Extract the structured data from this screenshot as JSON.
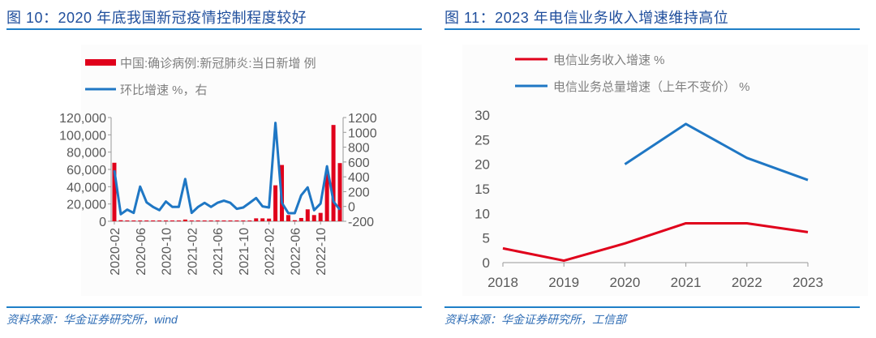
{
  "left": {
    "title": "图 10：2020 年底我国新冠疫情控制程度较好",
    "source": "资料来源：华金证券研究所，wind"
  },
  "right": {
    "title": "图 11：2023 年电信业务收入增速维持高位",
    "source": "资料来源：华金证券研究所，工信部"
  },
  "chart_data": [
    {
      "type": "bar+line",
      "categories": [
        "2020-02",
        "2020-03",
        "2020-04",
        "2020-05",
        "2020-06",
        "2020-07",
        "2020-08",
        "2020-09",
        "2020-10",
        "2020-11",
        "2020-12",
        "2021-01",
        "2021-02",
        "2021-03",
        "2021-04",
        "2021-05",
        "2021-06",
        "2021-07",
        "2021-08",
        "2021-09",
        "2021-10",
        "2021-11",
        "2021-12",
        "2022-01",
        "2022-02",
        "2022-03",
        "2022-04",
        "2022-05",
        "2022-06",
        "2022-07",
        "2022-08",
        "2022-09",
        "2022-10",
        "2022-11",
        "2022-12",
        "2023-01"
      ],
      "x_tick_labels": [
        "2020-02",
        "2020-06",
        "2020-10",
        "2021-02",
        "2021-06",
        "2021-10",
        "2022-02",
        "2022-06",
        "2022-10"
      ],
      "series": [
        {
          "name": "中国:确诊病例:新冠肺炎:当日新增 例",
          "kind": "bar",
          "axis": "left",
          "color": "#e0001b",
          "values": [
            67700,
            1200,
            600,
            100,
            100,
            100,
            100,
            100,
            100,
            100,
            100,
            2000,
            100,
            100,
            100,
            100,
            100,
            500,
            800,
            600,
            500,
            900,
            3400,
            3400,
            3100,
            41600,
            65100,
            7200,
            1200,
            3800,
            13800,
            7200,
            9700,
            55100,
            111400,
            67300
          ]
        },
        {
          "name": "环比增速 %，右",
          "kind": "line",
          "axis": "right",
          "color": "#1f77c4",
          "values": [
            487,
            -105,
            -43,
            -87,
            268,
            56,
            -6,
            -50,
            67,
            -6,
            -6,
            370,
            -87,
            -6,
            49,
            -6,
            49,
            78,
            49,
            -32,
            -14,
            49,
            114,
            1,
            -14,
            1127,
            49,
            -90,
            -90,
            151,
            257,
            -50,
            38,
            542,
            67,
            -43
          ]
        }
      ],
      "left_axis": {
        "ylim": [
          0,
          120000
        ],
        "ticks": [
          "0",
          "20,000",
          "40,000",
          "60,000",
          "80,000",
          "100,000",
          "120,000"
        ]
      },
      "right_axis": {
        "ylim": [
          -200,
          1200
        ],
        "ticks": [
          "-200",
          "0",
          "200",
          "400",
          "600",
          "800",
          "1000",
          "1200"
        ]
      },
      "legend_placement": "top"
    },
    {
      "type": "line",
      "categories": [
        "2018",
        "2019",
        "2020",
        "2021",
        "2022",
        "2023"
      ],
      "series": [
        {
          "name": "电信业务收入增速 %",
          "color": "#e0001b",
          "values": [
            2.9,
            0.4,
            3.9,
            8.0,
            8.0,
            6.2
          ]
        },
        {
          "name": "电信业务总量增速（上年不变价） %",
          "color": "#1f77c4",
          "values": [
            null,
            null,
            20.0,
            28.2,
            21.3,
            16.8
          ]
        }
      ],
      "ylim": [
        0,
        30
      ],
      "y_ticks": [
        "0",
        "5",
        "10",
        "15",
        "20",
        "25",
        "30"
      ],
      "legend_placement": "top"
    }
  ]
}
